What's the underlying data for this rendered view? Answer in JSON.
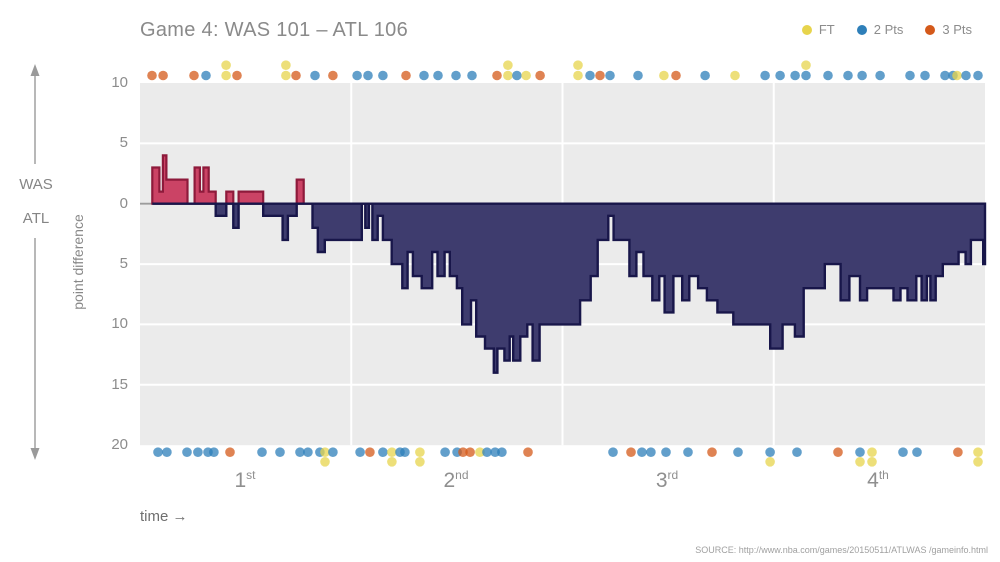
{
  "title": "Game 4: WAS 101  –  ATL 106",
  "legend": {
    "items": [
      {
        "label": "FT",
        "type": "ft"
      },
      {
        "label": "2 Pts",
        "type": "2"
      },
      {
        "label": "3 Pts",
        "type": "3"
      }
    ]
  },
  "axis": {
    "teams_top": "WAS",
    "teams_bottom": "ATL",
    "y_label": "point difference",
    "time_label": "time →",
    "y_ticks": [
      {
        "label": "10",
        "value": 10
      },
      {
        "label": "5",
        "value": 5
      },
      {
        "label": "0",
        "value": 0
      },
      {
        "label": "5",
        "value": -5
      },
      {
        "label": "10",
        "value": -10
      },
      {
        "label": "15",
        "value": -15
      },
      {
        "label": "20",
        "value": -20
      }
    ],
    "quarters": [
      {
        "num": "1",
        "suffix": "st"
      },
      {
        "num": "2",
        "suffix": "nd"
      },
      {
        "num": "3",
        "suffix": "rd"
      },
      {
        "num": "4",
        "suffix": "th"
      }
    ]
  },
  "source": "SOURCE: http://www.nba.com/games/20150511/ATLWAS /gameinfo.html",
  "colors": {
    "was_fill": "#cb4365",
    "was_stroke": "#8e1a3b",
    "atl_fill": "#3e3c6e",
    "atl_stroke": "#18164a",
    "ft": "#e7d44c",
    "2": "#2e7fb9",
    "3": "#d4591a",
    "plot_bg": "#ebebeb",
    "grid": "#ffffff",
    "zero_line": "#9c9c9c"
  },
  "chart_data": {
    "type": "area",
    "title": "Game 4: WAS 101 – ATL 106",
    "x_unit": "game time (minutes)",
    "x_range": [
      0,
      48
    ],
    "ylabel": "point difference",
    "ylim": [
      -20,
      10
    ],
    "orientation_note": "positive values = WAS lead (red), negative values = ATL lead (navy)",
    "quarter_boundaries_min": [
      12,
      24,
      36
    ],
    "final": {
      "was": 101,
      "atl": 106
    },
    "point_difference_steps": [
      [
        0,
        0
      ],
      [
        0.7,
        3
      ],
      [
        1.1,
        1
      ],
      [
        1.3,
        4
      ],
      [
        1.5,
        2
      ],
      [
        2.7,
        0
      ],
      [
        3.1,
        3
      ],
      [
        3.4,
        1
      ],
      [
        3.6,
        3
      ],
      [
        3.9,
        1
      ],
      [
        4.3,
        -1
      ],
      [
        4.9,
        1
      ],
      [
        5.3,
        -2
      ],
      [
        5.6,
        1
      ],
      [
        7.0,
        -1
      ],
      [
        8.1,
        -3
      ],
      [
        8.4,
        -1
      ],
      [
        8.9,
        2
      ],
      [
        9.3,
        0
      ],
      [
        9.8,
        -2
      ],
      [
        10.1,
        -4
      ],
      [
        10.5,
        -3
      ],
      [
        12.6,
        0
      ],
      [
        12.8,
        -2
      ],
      [
        13.0,
        0
      ],
      [
        13.2,
        -3
      ],
      [
        13.5,
        -1
      ],
      [
        13.8,
        -3
      ],
      [
        14.3,
        -5
      ],
      [
        14.9,
        -7
      ],
      [
        15.2,
        -4
      ],
      [
        15.5,
        -6
      ],
      [
        16.0,
        -7
      ],
      [
        16.6,
        -4
      ],
      [
        16.9,
        -6
      ],
      [
        17.3,
        -4
      ],
      [
        17.6,
        -6
      ],
      [
        18.0,
        -7
      ],
      [
        18.3,
        -10
      ],
      [
        18.8,
        -8
      ],
      [
        19.1,
        -11
      ],
      [
        19.6,
        -12
      ],
      [
        20.1,
        -14
      ],
      [
        20.3,
        -12
      ],
      [
        20.7,
        -13
      ],
      [
        21.0,
        -11
      ],
      [
        21.2,
        -13
      ],
      [
        21.6,
        -11
      ],
      [
        22.0,
        -10
      ],
      [
        22.3,
        -13
      ],
      [
        22.7,
        -10
      ],
      [
        25.0,
        -8
      ],
      [
        25.6,
        -6
      ],
      [
        26.0,
        -3
      ],
      [
        26.6,
        -1
      ],
      [
        26.9,
        -3
      ],
      [
        27.8,
        -6
      ],
      [
        28.2,
        -4
      ],
      [
        28.6,
        -6
      ],
      [
        29.1,
        -8
      ],
      [
        29.5,
        -6
      ],
      [
        29.8,
        -9
      ],
      [
        30.3,
        -6
      ],
      [
        30.8,
        -8
      ],
      [
        31.2,
        -6
      ],
      [
        31.7,
        -7
      ],
      [
        32.2,
        -8
      ],
      [
        32.8,
        -9
      ],
      [
        33.7,
        -10
      ],
      [
        35.8,
        -12
      ],
      [
        36.5,
        -10
      ],
      [
        37.2,
        -11
      ],
      [
        37.7,
        -7
      ],
      [
        38.9,
        -5
      ],
      [
        39.8,
        -8
      ],
      [
        40.3,
        -6
      ],
      [
        40.9,
        -8
      ],
      [
        41.3,
        -7
      ],
      [
        42.8,
        -8
      ],
      [
        43.2,
        -7
      ],
      [
        43.6,
        -8
      ],
      [
        44.1,
        -6
      ],
      [
        44.4,
        -8
      ],
      [
        44.7,
        -6
      ],
      [
        44.9,
        -8
      ],
      [
        45.2,
        -6
      ],
      [
        45.6,
        -5
      ],
      [
        46.5,
        -4
      ],
      [
        46.9,
        -5
      ],
      [
        47.2,
        -3
      ],
      [
        47.9,
        -5
      ],
      [
        48,
        -5
      ]
    ],
    "was_scoring_events": [
      [
        0.68,
        "3"
      ],
      [
        1.31,
        "3"
      ],
      [
        3.07,
        "3"
      ],
      [
        3.75,
        "2"
      ],
      [
        4.89,
        "ft"
      ],
      [
        4.89,
        "ft",
        1
      ],
      [
        5.51,
        "3"
      ],
      [
        8.29,
        "ft"
      ],
      [
        8.29,
        "ft",
        1
      ],
      [
        8.86,
        "3"
      ],
      [
        9.94,
        "2"
      ],
      [
        10.96,
        "3"
      ],
      [
        12.33,
        "2"
      ],
      [
        12.95,
        "2"
      ],
      [
        13.8,
        "2"
      ],
      [
        15.11,
        "3"
      ],
      [
        16.13,
        "2"
      ],
      [
        16.93,
        "2"
      ],
      [
        17.95,
        "2"
      ],
      [
        18.86,
        "2"
      ],
      [
        20.28,
        "3"
      ],
      [
        20.9,
        "ft"
      ],
      [
        20.9,
        "ft",
        1
      ],
      [
        21.41,
        "2"
      ],
      [
        21.93,
        "ft"
      ],
      [
        22.73,
        "3"
      ],
      [
        24.88,
        "ft"
      ],
      [
        24.88,
        "ft",
        1
      ],
      [
        25.56,
        "2"
      ],
      [
        26.13,
        "3"
      ],
      [
        26.7,
        "2"
      ],
      [
        28.29,
        "2"
      ],
      [
        29.76,
        "ft"
      ],
      [
        30.45,
        "3"
      ],
      [
        32.1,
        "2"
      ],
      [
        33.8,
        "ft"
      ],
      [
        35.51,
        "2"
      ],
      [
        36.36,
        "2"
      ],
      [
        37.21,
        "2"
      ],
      [
        37.83,
        "2"
      ],
      [
        37.83,
        "ft",
        1
      ],
      [
        39.08,
        "2"
      ],
      [
        40.22,
        "2"
      ],
      [
        41.02,
        "2"
      ],
      [
        42.04,
        "2"
      ],
      [
        43.74,
        "2"
      ],
      [
        44.59,
        "2"
      ],
      [
        45.73,
        "2"
      ],
      [
        46.18,
        "2"
      ],
      [
        46.41,
        "ft"
      ],
      [
        46.92,
        "2"
      ],
      [
        47.6,
        "2"
      ]
    ],
    "atl_scoring_events": [
      [
        1.02,
        "2"
      ],
      [
        1.53,
        "2"
      ],
      [
        2.67,
        "2"
      ],
      [
        3.29,
        "2"
      ],
      [
        3.86,
        "2"
      ],
      [
        4.2,
        "2"
      ],
      [
        5.11,
        "3"
      ],
      [
        6.93,
        "2"
      ],
      [
        7.95,
        "2"
      ],
      [
        9.09,
        "2"
      ],
      [
        9.54,
        "2"
      ],
      [
        10.22,
        "2"
      ],
      [
        10.51,
        "ft"
      ],
      [
        10.51,
        "ft",
        1
      ],
      [
        10.96,
        "2"
      ],
      [
        12.5,
        "2"
      ],
      [
        13.06,
        "3"
      ],
      [
        13.8,
        "2"
      ],
      [
        14.31,
        "ft"
      ],
      [
        14.31,
        "ft",
        1
      ],
      [
        14.77,
        "2"
      ],
      [
        15.05,
        "2"
      ],
      [
        15.9,
        "ft"
      ],
      [
        15.9,
        "ft",
        1
      ],
      [
        17.33,
        "2"
      ],
      [
        18.01,
        "2"
      ],
      [
        18.35,
        "3"
      ],
      [
        18.75,
        "3"
      ],
      [
        19.31,
        "ft"
      ],
      [
        19.71,
        "2"
      ],
      [
        20.17,
        "2"
      ],
      [
        20.56,
        "2"
      ],
      [
        22.04,
        "3"
      ],
      [
        26.87,
        "2"
      ],
      [
        27.89,
        "3"
      ],
      [
        28.51,
        "2"
      ],
      [
        29.02,
        "2"
      ],
      [
        29.88,
        "2"
      ],
      [
        31.13,
        "2"
      ],
      [
        32.49,
        "3"
      ],
      [
        33.97,
        "2"
      ],
      [
        35.79,
        "2"
      ],
      [
        35.79,
        "ft",
        1
      ],
      [
        37.32,
        "2"
      ],
      [
        39.65,
        "3"
      ],
      [
        40.9,
        "2"
      ],
      [
        40.9,
        "ft",
        1
      ],
      [
        41.58,
        "ft"
      ],
      [
        41.58,
        "ft",
        1
      ],
      [
        43.34,
        "2"
      ],
      [
        44.14,
        "2"
      ],
      [
        46.46,
        "3"
      ],
      [
        47.6,
        "ft"
      ],
      [
        47.6,
        "ft",
        1
      ]
    ]
  }
}
